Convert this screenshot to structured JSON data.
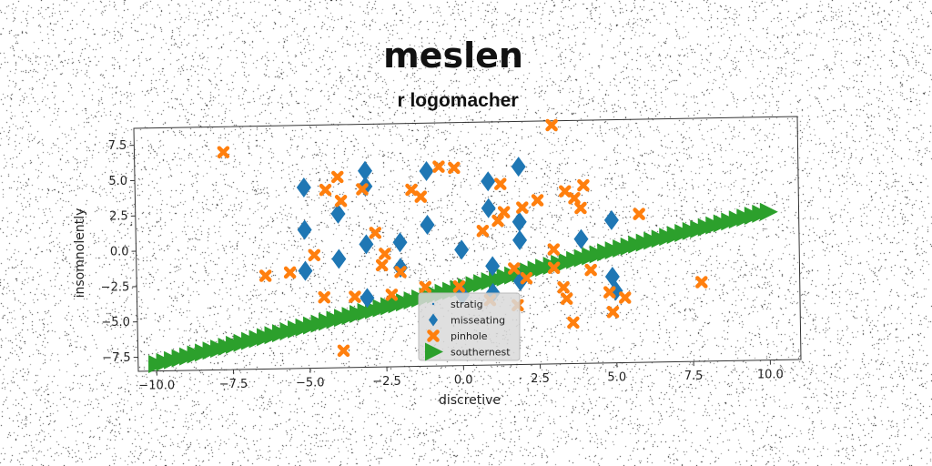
{
  "chart_data": {
    "type": "scatter",
    "title": "meslen",
    "subtitle": "r logomacher",
    "xlabel": "discretive",
    "ylabel": "insomnolently",
    "xlim": [
      -10.6,
      11.0
    ],
    "ylim": [
      -8.5,
      8.7
    ],
    "xticks": [
      -10.0,
      -7.5,
      -5.0,
      -2.5,
      0.0,
      2.5,
      5.0,
      7.5,
      10.0
    ],
    "yticks": [
      -7.5,
      -5.0,
      -2.5,
      0.0,
      2.5,
      5.0,
      7.5
    ],
    "xtick_labels": [
      "−10.0",
      "−7.5",
      "−5.0",
      "−2.5",
      "0.0",
      "2.5",
      "5.0",
      "7.5",
      "10.0"
    ],
    "ytick_labels": [
      "−7.5",
      "−5.0",
      "−2.5",
      "0.0",
      "2.5",
      "5.0",
      "7.5"
    ],
    "grid": false,
    "legend_position": "bottom-center",
    "series": [
      {
        "name": "stratig",
        "marker": "point",
        "color": "#1f77b4",
        "points": []
      },
      {
        "name": "misseating",
        "marker": "diamond",
        "color": "#1f77b4",
        "points": [
          [
            -5.1,
            4.3
          ],
          [
            -3.1,
            5.4
          ],
          [
            -3.1,
            4.3
          ],
          [
            -4.0,
            2.4
          ],
          [
            -5.1,
            1.3
          ],
          [
            -2.0,
            0.3
          ],
          [
            -3.1,
            0.2
          ],
          [
            -4.0,
            -0.8
          ],
          [
            -5.1,
            -1.6
          ],
          [
            -2.0,
            -1.5
          ],
          [
            -3.1,
            -3.6
          ],
          [
            -1.1,
            1.5
          ],
          [
            -1.1,
            5.3
          ],
          [
            0.9,
            4.5
          ],
          [
            1.9,
            5.5
          ],
          [
            0.9,
            2.6
          ],
          [
            1.9,
            1.6
          ],
          [
            1.9,
            0.3
          ],
          [
            0.0,
            -0.3
          ],
          [
            1.0,
            -1.5
          ],
          [
            1.9,
            -2.6
          ],
          [
            1.0,
            -3.4
          ],
          [
            0.0,
            -3.5
          ],
          [
            3.9,
            0.3
          ],
          [
            4.9,
            1.6
          ],
          [
            4.9,
            -2.4
          ],
          [
            5.0,
            -3.4
          ]
        ]
      },
      {
        "name": "pinhole",
        "marker": "x",
        "color": "#ff7f0e",
        "points": [
          [
            -7.7,
            6.9
          ],
          [
            -4.0,
            5.0
          ],
          [
            -4.4,
            4.1
          ],
          [
            -3.2,
            4.1
          ],
          [
            -3.9,
            3.3
          ],
          [
            -2.8,
            1.0
          ],
          [
            -4.8,
            -0.5
          ],
          [
            -5.6,
            -1.7
          ],
          [
            -6.4,
            -1.9
          ],
          [
            -4.5,
            -3.5
          ],
          [
            -3.5,
            -3.5
          ],
          [
            -3.9,
            -7.3
          ],
          [
            -2.5,
            -0.5
          ],
          [
            -2.6,
            -1.3
          ],
          [
            -2.0,
            -1.8
          ],
          [
            -2.3,
            -3.4
          ],
          [
            -1.2,
            -2.9
          ],
          [
            -1.6,
            4.0
          ],
          [
            -1.3,
            3.5
          ],
          [
            -0.7,
            5.6
          ],
          [
            -0.2,
            5.5
          ],
          [
            0.7,
            1.0
          ],
          [
            1.2,
            1.7
          ],
          [
            1.4,
            2.3
          ],
          [
            1.3,
            4.3
          ],
          [
            2.0,
            2.6
          ],
          [
            2.5,
            3.1
          ],
          [
            3.0,
            8.4
          ],
          [
            3.4,
            3.7
          ],
          [
            4.0,
            4.1
          ],
          [
            3.7,
            3.2
          ],
          [
            3.9,
            2.5
          ],
          [
            3.0,
            -0.4
          ],
          [
            4.2,
            -1.9
          ],
          [
            3.0,
            -1.7
          ],
          [
            3.3,
            -3.1
          ],
          [
            3.4,
            -3.9
          ],
          [
            3.6,
            -5.6
          ],
          [
            1.7,
            -1.7
          ],
          [
            2.1,
            -2.4
          ],
          [
            1.8,
            -4.3
          ],
          [
            5.8,
            2.0
          ],
          [
            4.8,
            -3.5
          ],
          [
            5.3,
            -3.9
          ],
          [
            4.9,
            -4.9
          ],
          [
            7.8,
            -2.9
          ],
          [
            0.9,
            -3.9
          ],
          [
            -0.1,
            -2.9
          ]
        ]
      },
      {
        "name": "southernest",
        "marker": "triangle-right",
        "color": "#2ca02c",
        "points": "line y = -3.01 + 0.5*x for x from -10 to 10, 80 evenly spaced points"
      }
    ]
  }
}
